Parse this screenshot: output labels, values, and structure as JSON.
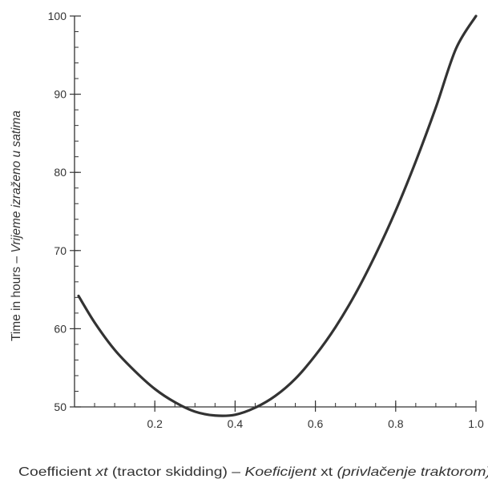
{
  "chart_data": {
    "type": "line",
    "xlabel": {
      "parts": [
        {
          "text": "Coefficient ",
          "italic": false
        },
        {
          "text": "xt",
          "italic": true
        },
        {
          "text": " (tractor skidding) – ",
          "italic": false
        },
        {
          "text": "Koeficijent ",
          "italic": true
        },
        {
          "text": "xt",
          "italic": false
        },
        {
          "text": " (privlačenje traktorom)",
          "italic": true
        }
      ]
    },
    "ylabel": {
      "parts": [
        {
          "text": "Time in hours – ",
          "italic": false
        },
        {
          "text": "Vrijeme izraženo u satima",
          "italic": true
        }
      ]
    },
    "xlim": [
      0,
      1
    ],
    "ylim": [
      50,
      100
    ],
    "x_ticks": [
      0.2,
      0.4,
      0.6,
      0.8,
      1.0
    ],
    "x_tick_labels": [
      "0.2",
      "0.4",
      "0.6",
      "0.8",
      "1.0"
    ],
    "x_minor_step": 0.05,
    "y_ticks": [
      50,
      60,
      70,
      80,
      90,
      100
    ],
    "y_tick_labels": [
      "50",
      "60",
      "70",
      "80",
      "90",
      "100"
    ],
    "y_minor_step": 2,
    "grid": false,
    "line_color": "#333333",
    "series": [
      {
        "x": [
          0.01,
          0.05,
          0.1,
          0.15,
          0.2,
          0.25,
          0.3,
          0.35,
          0.4,
          0.45,
          0.5,
          0.55,
          0.6,
          0.65,
          0.7,
          0.75,
          0.8,
          0.85,
          0.9,
          0.95,
          1.0
        ],
        "values": [
          64.2,
          60.8,
          57.3,
          54.6,
          52.3,
          50.6,
          49.4,
          48.9,
          49.0,
          49.9,
          51.4,
          53.6,
          56.6,
          60.2,
          64.5,
          69.5,
          75.1,
          81.4,
          88.3,
          95.8,
          100.0
        ]
      }
    ]
  }
}
